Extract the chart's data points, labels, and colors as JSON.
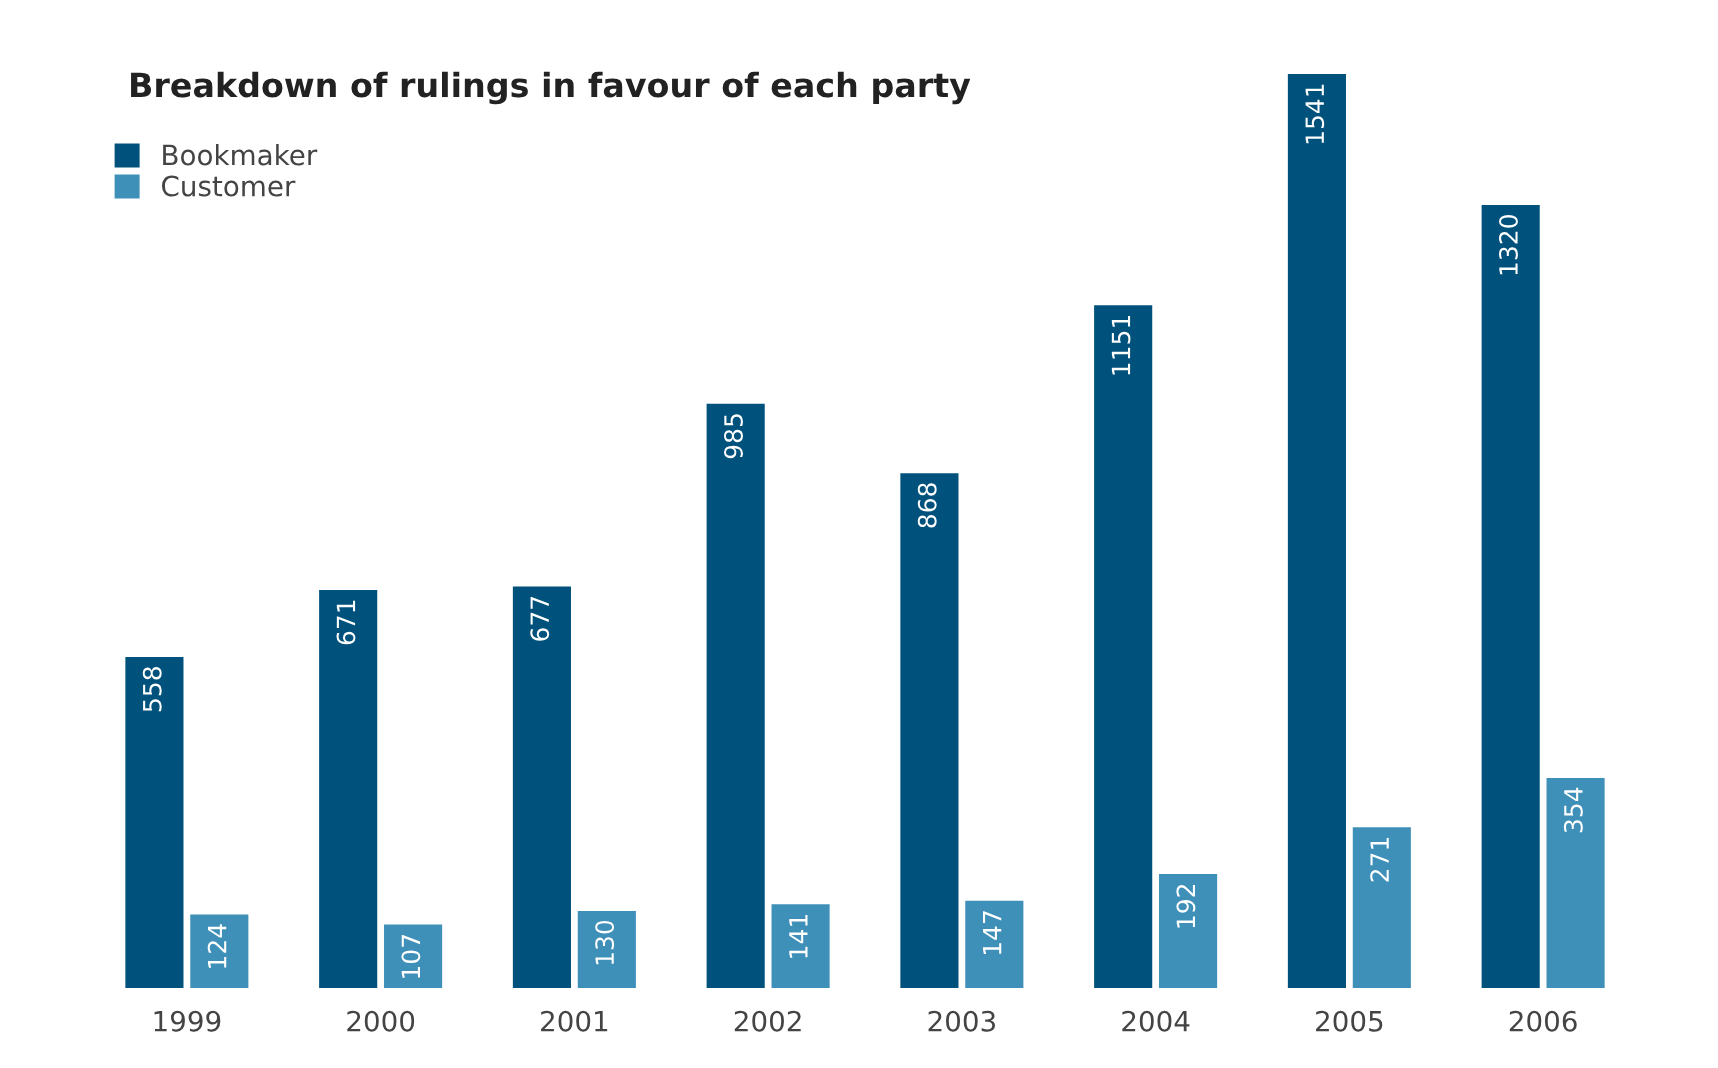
{
  "chart_data": {
    "type": "bar",
    "title": "Breakdown of rulings in favour of each party",
    "categories": [
      "1999",
      "2000",
      "2001",
      "2002",
      "2003",
      "2004",
      "2005",
      "2006"
    ],
    "series": [
      {
        "name": "Bookmaker",
        "color": "#00527c",
        "values": [
          558,
          671,
          677,
          985,
          868,
          1151,
          1541,
          1320
        ]
      },
      {
        "name": "Customer",
        "color": "#3f90b9",
        "values": [
          124,
          107,
          130,
          141,
          147,
          192,
          271,
          354
        ]
      }
    ],
    "data_labels": true,
    "legend": "top left",
    "grid": false
  }
}
